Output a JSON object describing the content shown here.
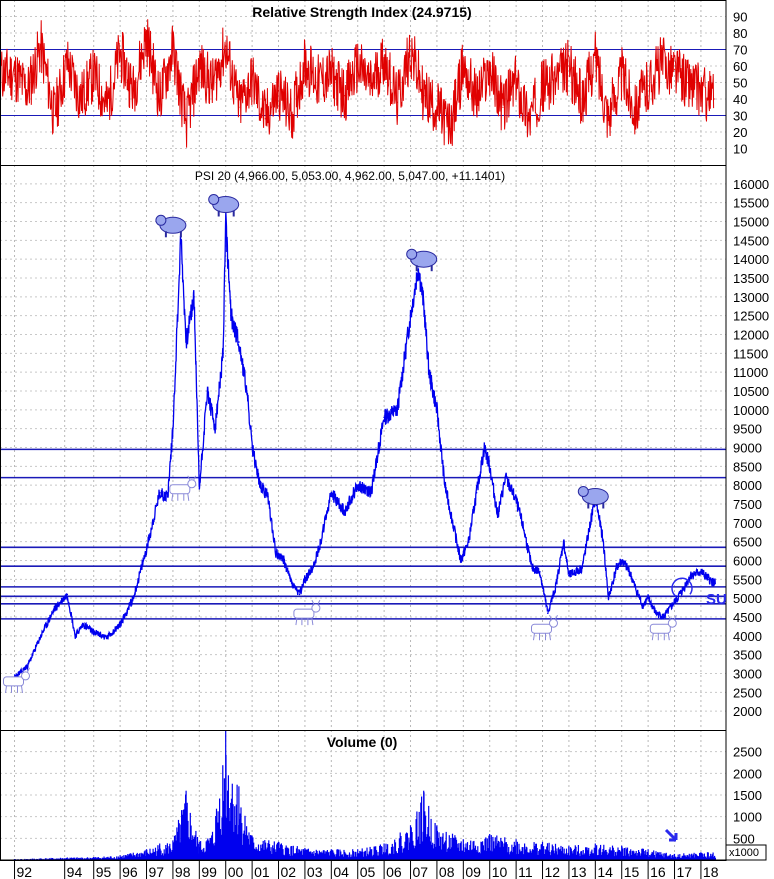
{
  "chart_data": [
    {
      "panel": "rsi",
      "type": "line",
      "title": "Relative Strength Index (24.9715)",
      "color": "#e00000",
      "ylim": [
        0,
        100
      ],
      "yticks": [
        10,
        20,
        30,
        40,
        50,
        60,
        70,
        80,
        90
      ],
      "reference_lines": [
        30,
        70
      ],
      "reference_color": "#1a1ab8",
      "series": [
        {
          "x": [
            1992.0,
            1992.5,
            1993.0,
            1993.5,
            1994.0,
            1994.5,
            1995.0,
            1995.5,
            1996.0,
            1996.5,
            1997.0,
            1997.5,
            1998.0,
            1998.5,
            1999.0,
            1999.5,
            2000.0,
            2000.5,
            2001.0,
            2001.5,
            2002.0,
            2002.5,
            2003.0,
            2003.5,
            2004.0,
            2004.5,
            2005.0,
            2005.5,
            2006.0,
            2006.5,
            2007.0,
            2007.5,
            2008.0,
            2008.5,
            2009.0,
            2009.5,
            2010.0,
            2010.5,
            2011.0,
            2011.5,
            2012.0,
            2012.5,
            2013.0,
            2013.5,
            2014.0,
            2014.5,
            2015.0,
            2015.5,
            2016.0,
            2016.5,
            2017.0,
            2017.5,
            2018.0,
            2018.5
          ],
          "values": [
            55,
            45,
            72,
            30,
            62,
            40,
            55,
            35,
            68,
            45,
            78,
            40,
            70,
            25,
            60,
            48,
            72,
            35,
            52,
            28,
            45,
            30,
            62,
            50,
            55,
            42,
            60,
            48,
            65,
            38,
            70,
            42,
            35,
            22,
            60,
            40,
            58,
            35,
            50,
            28,
            48,
            52,
            60,
            38,
            65,
            30,
            55,
            35,
            48,
            62,
            58,
            50,
            45,
            40
          ]
        }
      ]
    },
    {
      "panel": "price",
      "type": "line",
      "title": "PSI 20 (4,966.00, 5,053.00, 4,962.00, 5,047.00, +11.1401)",
      "color": "#0000ee",
      "ylim": [
        1500,
        16500
      ],
      "yticks": [
        2000,
        2500,
        3000,
        3500,
        4000,
        4500,
        5000,
        5500,
        6000,
        6500,
        7000,
        7500,
        8000,
        8500,
        9000,
        9500,
        10000,
        10500,
        11000,
        11500,
        12000,
        12500,
        13000,
        13500,
        14000,
        14500,
        15000,
        15500,
        16000
      ],
      "horizontal_levels": [
        8950,
        8200,
        6350,
        5850,
        5300,
        5050,
        4850,
        4450
      ],
      "level_color": "#1a1ab8",
      "series": [
        {
          "x": [
            1992.0,
            1992.5,
            1993.0,
            1993.5,
            1994.0,
            1994.3,
            1994.6,
            1995.0,
            1995.5,
            1996.0,
            1996.5,
            1997.0,
            1997.5,
            1997.8,
            1998.0,
            1998.3,
            1998.5,
            1998.8,
            1999.0,
            1999.3,
            1999.6,
            1999.9,
            2000.0,
            2000.2,
            2000.5,
            2000.8,
            2001.0,
            2001.3,
            2001.6,
            2001.9,
            2002.2,
            2002.5,
            2002.8,
            2003.0,
            2003.3,
            2003.6,
            2004.0,
            2004.5,
            2005.0,
            2005.5,
            2006.0,
            2006.5,
            2007.0,
            2007.3,
            2007.5,
            2007.7,
            2008.0,
            2008.3,
            2008.6,
            2008.9,
            2009.2,
            2009.5,
            2009.8,
            2010.0,
            2010.3,
            2010.6,
            2011.0,
            2011.3,
            2011.6,
            2011.9,
            2012.2,
            2012.5,
            2012.8,
            2013.0,
            2013.5,
            2014.0,
            2014.3,
            2014.5,
            2014.8,
            2015.0,
            2015.3,
            2015.5,
            2015.8,
            2016.0,
            2016.3,
            2016.6,
            2017.0,
            2017.3,
            2017.6,
            2018.0,
            2018.3,
            2018.5
          ],
          "values": [
            2900,
            3200,
            4000,
            4700,
            5100,
            4000,
            4300,
            4100,
            3950,
            4300,
            5000,
            6300,
            7800,
            7700,
            9500,
            14600,
            11800,
            13000,
            7900,
            10500,
            9500,
            11500,
            15000,
            12500,
            11800,
            10500,
            9000,
            8000,
            7700,
            6200,
            6000,
            5400,
            5100,
            5500,
            5800,
            6500,
            7800,
            7300,
            8000,
            7800,
            9800,
            10000,
            12500,
            13800,
            12800,
            11000,
            10000,
            8000,
            7000,
            6000,
            6500,
            7800,
            9000,
            8500,
            7200,
            8200,
            7600,
            6800,
            5800,
            5700,
            4600,
            5300,
            6500,
            5600,
            5800,
            7700,
            6500,
            5000,
            5800,
            6000,
            5700,
            5300,
            4800,
            5000,
            4600,
            4500,
            4900,
            5200,
            5600,
            5700,
            5500,
            5400
          ]
        }
      ],
      "bear_markers": [
        {
          "x": 1998.0,
          "y": 14900
        },
        {
          "x": 2000.0,
          "y": 15450
        },
        {
          "x": 2007.5,
          "y": 14000
        },
        {
          "x": 2014.0,
          "y": 7700
        }
      ],
      "bull_markers": [
        {
          "x": 1992.0,
          "y": 2750
        },
        {
          "x": 1998.3,
          "y": 7850
        },
        {
          "x": 2003.0,
          "y": 4550
        },
        {
          "x": 2012.0,
          "y": 4150
        },
        {
          "x": 2016.5,
          "y": 4150
        }
      ]
    },
    {
      "panel": "volume",
      "type": "bar",
      "title": "Volume (0)",
      "color": "#0000ee",
      "ylim": [
        0,
        3000
      ],
      "yticks": [
        500,
        1000,
        1500,
        2000,
        2500
      ],
      "unit_label": "x1000",
      "series": [
        {
          "x": [
            1992.0,
            1993.0,
            1994.0,
            1995.0,
            1996.0,
            1997.0,
            1997.5,
            1998.0,
            1998.5,
            1999.0,
            1999.5,
            2000.0,
            2000.5,
            2001.0,
            2002.0,
            2003.0,
            2004.0,
            2005.0,
            2006.0,
            2007.0,
            2007.5,
            2008.0,
            2009.0,
            2010.0,
            2011.0,
            2012.0,
            2013.0,
            2014.0,
            2015.0,
            2016.0,
            2017.0,
            2018.0
          ],
          "values": [
            20,
            40,
            60,
            70,
            110,
            250,
            380,
            450,
            1600,
            420,
            650,
            3000,
            1700,
            560,
            420,
            280,
            250,
            250,
            380,
            800,
            1600,
            800,
            480,
            600,
            480,
            420,
            330,
            380,
            330,
            250,
            140,
            180
          ]
        }
      ]
    }
  ],
  "x_axis": {
    "labels": [
      "92",
      "94",
      "95",
      "96",
      "97",
      "98",
      "99",
      "00",
      "01",
      "02",
      "03",
      "04",
      "05",
      "06",
      "07",
      "08",
      "09",
      "10",
      "11",
      "12",
      "13",
      "14",
      "15",
      "16",
      "17",
      "18"
    ],
    "years": [
      1992,
      1993.9,
      1995,
      1996,
      1997,
      1998,
      1999,
      2000,
      2001,
      2002,
      2003,
      2004,
      2005,
      2006,
      2007,
      2008,
      2009,
      2010,
      2011,
      2012,
      2013,
      2014,
      2015,
      2016,
      2017,
      2018
    ],
    "xlim": [
      1991.45,
      2018.95
    ]
  },
  "annotation_text": "SU"
}
